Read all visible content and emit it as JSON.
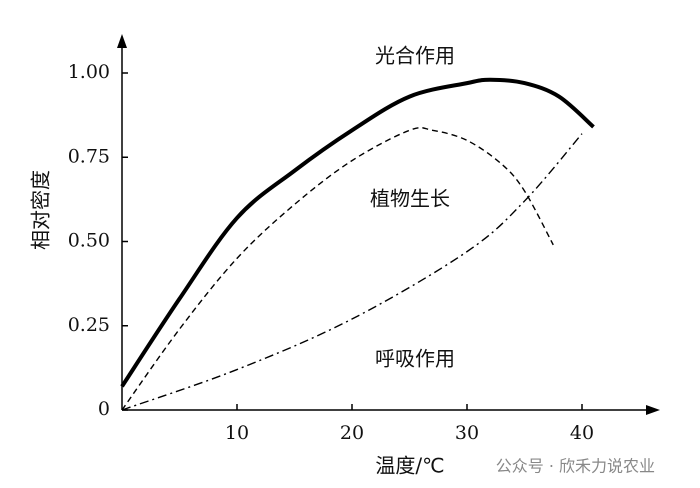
{
  "chart_data": {
    "type": "line",
    "xlabel": "温度/℃",
    "ylabel": "相对密度",
    "xlim": [
      0,
      46.3
    ],
    "ylim": [
      0,
      1.11
    ],
    "xticks": [
      10,
      20,
      30,
      40
    ],
    "yticks": [
      0,
      0.25,
      {
        "value": 0.5,
        "label": "0.50"
      },
      0.75,
      {
        "value": 1,
        "label": "1.00"
      }
    ],
    "series": [
      {
        "name": "光合作用",
        "color": "#000000",
        "style": "solid",
        "x": [
          0,
          5,
          10,
          15,
          20,
          25,
          30,
          32,
          35,
          38,
          41
        ],
        "values": [
          0.07,
          0.33,
          0.57,
          0.71,
          0.83,
          0.93,
          0.97,
          0.98,
          0.97,
          0.93,
          0.84
        ]
      },
      {
        "name": "植物生长",
        "color": "#000000",
        "style": "dashed",
        "x": [
          0,
          5,
          10,
          15,
          20,
          25,
          27,
          30,
          33,
          35,
          37.5
        ],
        "values": [
          0,
          0.24,
          0.45,
          0.61,
          0.74,
          0.83,
          0.83,
          0.8,
          0.73,
          0.65,
          0.49
        ]
      },
      {
        "name": "呼吸作用",
        "color": "#000000",
        "style": "dashdot",
        "x": [
          0,
          10,
          20,
          30,
          35,
          40
        ],
        "values": [
          0,
          0.12,
          0.27,
          0.47,
          0.62,
          0.82
        ]
      }
    ],
    "watermark": "公众号 · 欣禾力说农业"
  }
}
